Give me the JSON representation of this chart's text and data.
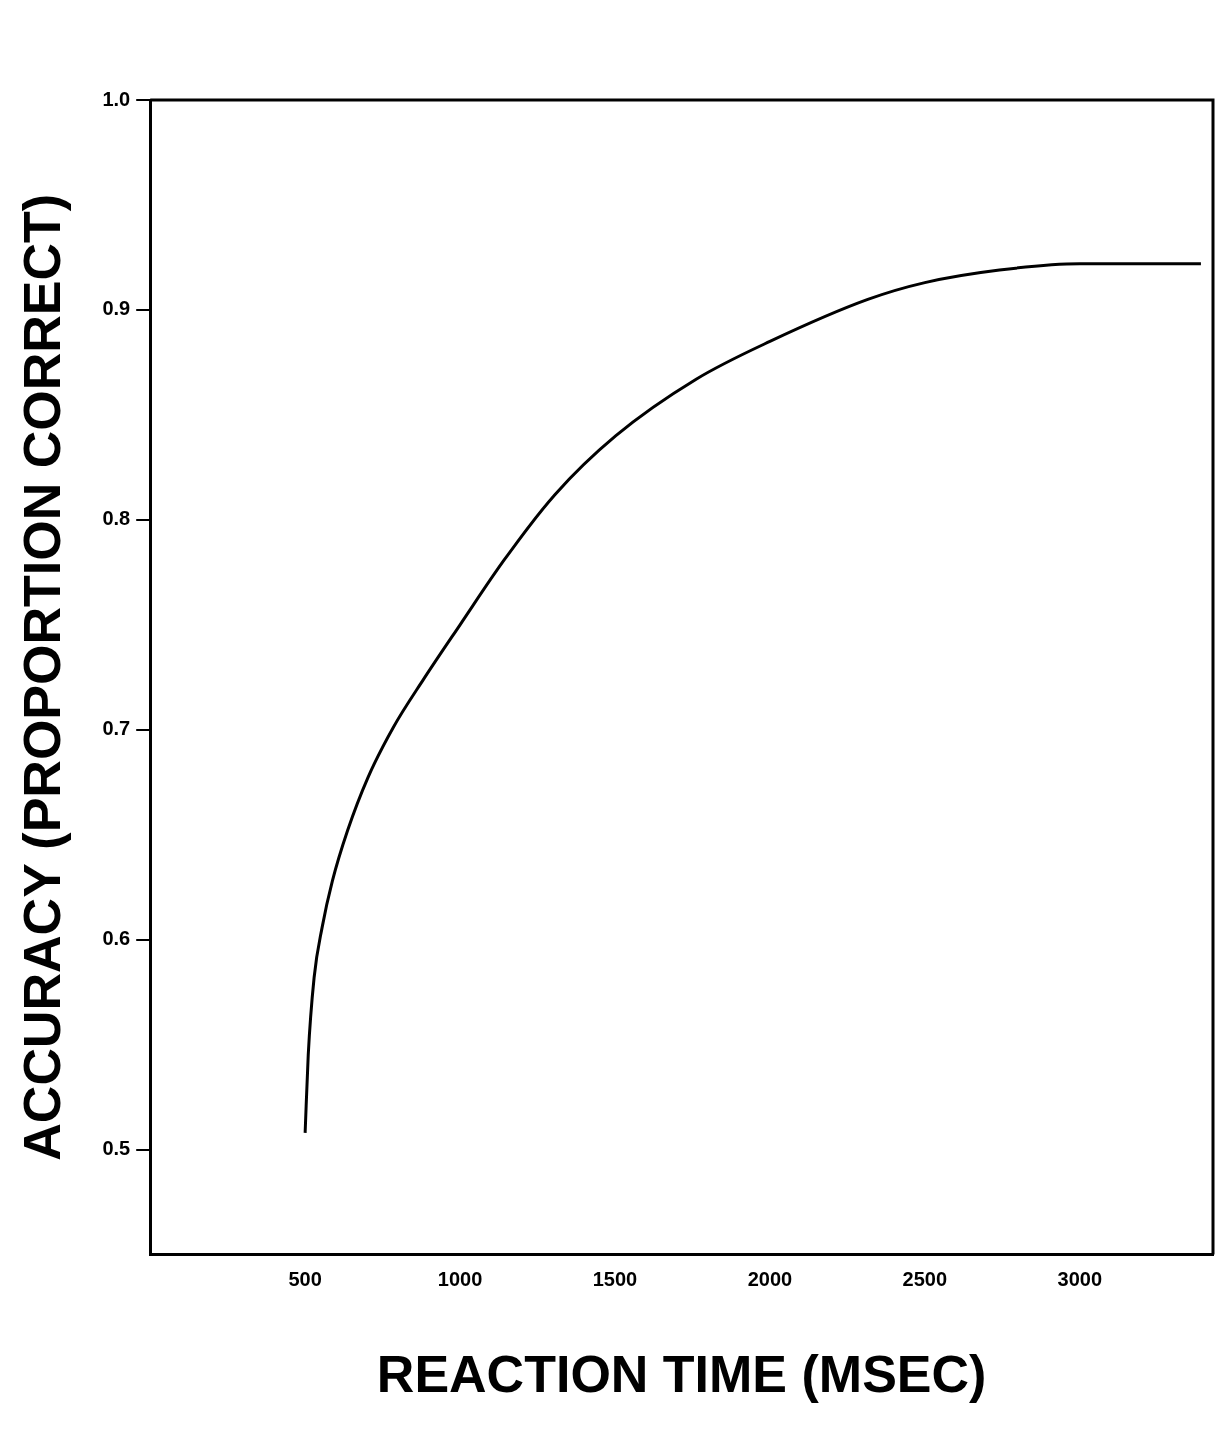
{
  "chart_data": {
    "type": "line",
    "xlabel": "REACTION TIME (MSEC)",
    "ylabel": "ACCURACY (PROPORTION CORRECT)",
    "x": [
      500,
      510,
      529,
      555,
      588,
      637,
      702,
      784,
      882,
      1000,
      1143,
      1306,
      1502,
      1762,
      2000,
      2316,
      2500,
      2741,
      3000,
      3391
    ],
    "series": [
      {
        "color": "#000000",
        "values": [
          0.508,
          0.545,
          0.582,
          0.606,
          0.628,
          0.652,
          0.677,
          0.701,
          0.724,
          0.75,
          0.781,
          0.812,
          0.84,
          0.867,
          0.885,
          0.905,
          0.913,
          0.919,
          0.922,
          0.922
        ]
      }
    ],
    "xlim": [
      0,
      3430
    ],
    "xticks": [
      500,
      1000,
      1500,
      2000,
      2500,
      3000
    ],
    "ylim": [
      0.45,
      1.0
    ],
    "yticks": [
      0.5,
      0.6,
      0.7,
      0.8,
      0.9,
      {
        "value": 1,
        "label": "1.0"
      }
    ],
    "grid": false,
    "legend": false,
    "marker": "none",
    "line_style": "solid"
  }
}
